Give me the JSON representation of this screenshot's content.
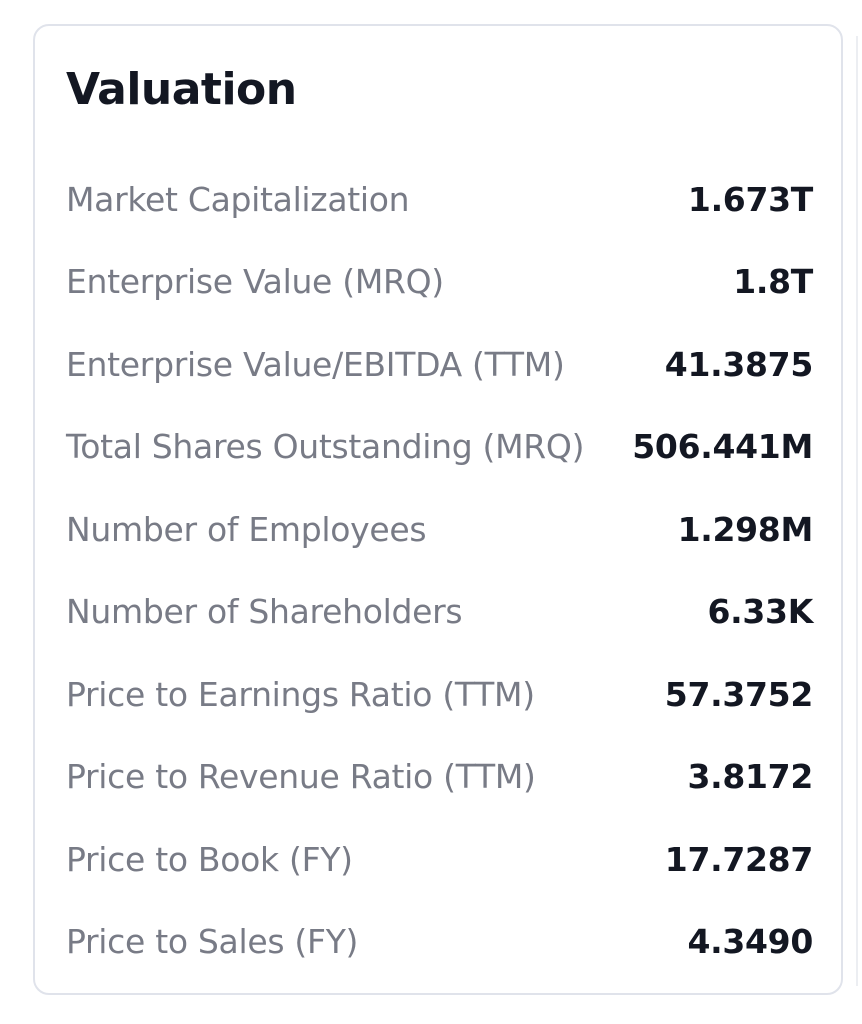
{
  "card": {
    "title": "Valuation",
    "rows": [
      {
        "label": "Market Capitalization",
        "value": "1.673T"
      },
      {
        "label": "Enterprise Value (MRQ)",
        "value": "1.8T"
      },
      {
        "label": "Enterprise Value/EBITDA (TTM)",
        "value": "41.3875"
      },
      {
        "label": "Total Shares Outstanding (MRQ)",
        "value": "506.441M"
      },
      {
        "label": "Number of Employees",
        "value": "1.298M"
      },
      {
        "label": "Number of Shareholders",
        "value": "6.33K"
      },
      {
        "label": "Price to Earnings Ratio (TTM)",
        "value": "57.3752"
      },
      {
        "label": "Price to Revenue Ratio (TTM)",
        "value": "3.8172"
      },
      {
        "label": "Price to Book (FY)",
        "value": "17.7287"
      },
      {
        "label": "Price to Sales (FY)",
        "value": "4.3490"
      }
    ]
  }
}
